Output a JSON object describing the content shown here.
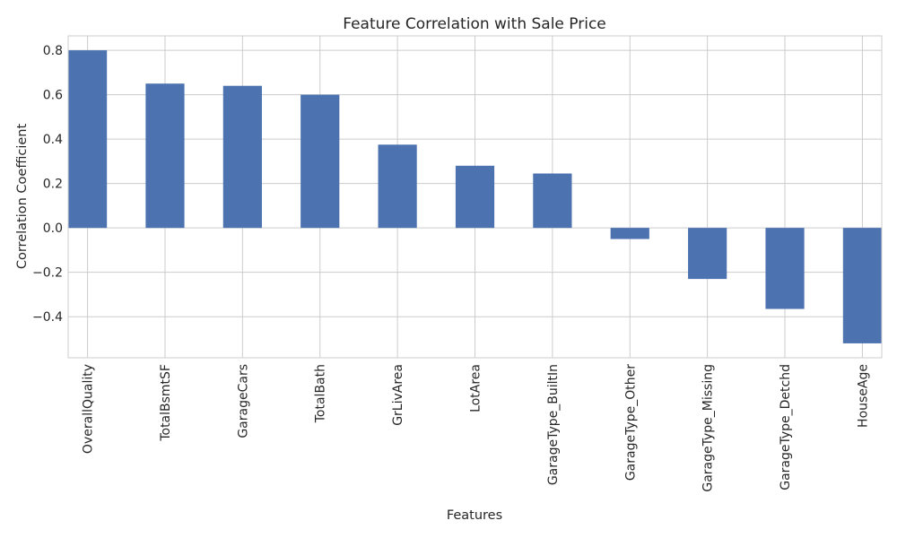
{
  "chart_data": {
    "type": "bar",
    "title": "Feature Correlation with Sale Price",
    "xlabel": "Features",
    "ylabel": "Correlation Coefficient",
    "categories": [
      "OverallQuality",
      "TotalBsmtSF",
      "GarageCars",
      "TotalBath",
      "GrLivArea",
      "LotArea",
      "GarageType_BuiltIn",
      "GarageType_Other",
      "GarageType_Missing",
      "GarageType_Detchd",
      "HouseAge"
    ],
    "values": [
      0.8,
      0.65,
      0.64,
      0.6,
      0.375,
      0.28,
      0.245,
      -0.05,
      -0.23,
      -0.365,
      -0.52
    ],
    "yticks": [
      -0.4,
      -0.2,
      0.0,
      0.2,
      0.4,
      0.6,
      0.8
    ],
    "ytick_labels": [
      "−0.4",
      "−0.2",
      "0.0",
      "0.2",
      "0.4",
      "0.6",
      "0.8"
    ],
    "ylim": [
      -0.585,
      0.865
    ],
    "bar_color": "#4c72b0",
    "grid": true
  }
}
